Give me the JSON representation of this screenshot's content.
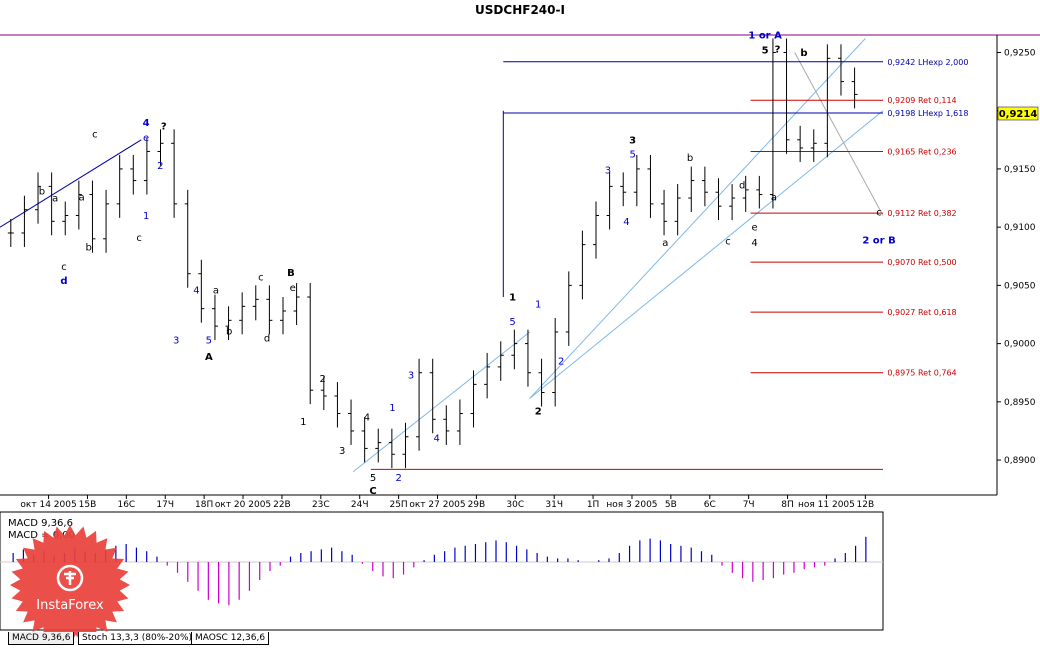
{
  "window": {
    "title": "USDCHF240-I"
  },
  "chart_data": {
    "type": "line",
    "title": "USDCHF240-I",
    "subtype": "candlestick-hloc-bars",
    "ylim": [
      0.887,
      0.9265
    ],
    "yticks": [
      "0,9250",
      "0,9200",
      "0,9150",
      "0,9100",
      "0,9050",
      "0,9000",
      "0,8950",
      "0,8900"
    ],
    "current_price": "0,9214",
    "x_labels": [
      "окт 14 2005",
      "15В",
      "16С",
      "17Ч",
      "18П",
      "окт 20 2005",
      "22В",
      "23С",
      "24Ч",
      "25П",
      "окт 27 2005",
      "29В",
      "30С",
      "31Ч",
      "1П",
      "ноя 3 2005",
      "5В",
      "6С",
      "7Ч",
      "8П",
      "ноя 11 2005",
      "12В"
    ],
    "price_path": [
      0.9095,
      0.9115,
      0.9135,
      0.9105,
      0.911,
      0.9128,
      0.909,
      0.912,
      0.915,
      0.914,
      0.9165,
      0.9172,
      0.912,
      0.906,
      0.903,
      0.9015,
      0.902,
      0.9032,
      0.9038,
      0.902,
      0.9028,
      0.904,
      0.896,
      0.8955,
      0.894,
      0.8925,
      0.891,
      0.8915,
      0.8905,
      0.892,
      0.8975,
      0.8935,
      0.8925,
      0.894,
      0.8965,
      0.898,
      0.899,
      0.9,
      0.8975,
      0.8958,
      0.901,
      0.905,
      0.9085,
      0.911,
      0.9135,
      0.913,
      0.915,
      0.912,
      0.9105,
      0.9125,
      0.914,
      0.913,
      0.9118,
      0.9125,
      0.9132,
      0.9128,
      0.925,
      0.9175,
      0.9168,
      0.9172,
      0.9245,
      0.9225,
      0.9214
    ],
    "levels": [
      {
        "price": 0.9242,
        "label": "0,9242 LHexp 2,000",
        "color": "#0000aa",
        "kind": "extension"
      },
      {
        "price": 0.9209,
        "label": "0,9209 Ret 0,114",
        "color": "#cc0000",
        "kind": "retracement"
      },
      {
        "price": 0.9198,
        "label": "0,9198 LHexp 1,618",
        "color": "#0000aa",
        "kind": "extension"
      },
      {
        "price": 0.9165,
        "label": "0,9165 Ret 0,236",
        "color": "#cc0000",
        "kind": "retracement"
      },
      {
        "price": 0.9112,
        "label": "0,9112 Ret 0,382",
        "color": "#cc0000",
        "kind": "retracement"
      },
      {
        "price": 0.907,
        "label": "0,9070 Ret 0,500",
        "color": "#cc0000",
        "kind": "retracement"
      },
      {
        "price": 0.9027,
        "label": "0,9027 Ret 0,618",
        "color": "#cc0000",
        "kind": "retracement"
      },
      {
        "price": 0.8975,
        "label": "0,8975 Ret 0,764",
        "color": "#cc0000",
        "kind": "retracement"
      }
    ],
    "wave_labels": [
      {
        "text": "4",
        "color": "#0000cc",
        "bold": true,
        "x": 0.1655,
        "p": 0.9187
      },
      {
        "text": "?",
        "color": "#000",
        "bold": true,
        "x": 0.1855,
        "p": 0.9184
      },
      {
        "text": "e",
        "color": "#0000cc",
        "bold": false,
        "x": 0.1655,
        "p": 0.9174
      },
      {
        "text": "c",
        "color": "#000",
        "bold": false,
        "x": 0.1075,
        "p": 0.9177
      },
      {
        "text": "2",
        "color": "#0000cc",
        "bold": false,
        "x": 0.1815,
        "p": 0.915
      },
      {
        "text": "b",
        "color": "#000",
        "bold": false,
        "x": 0.0475,
        "p": 0.9128
      },
      {
        "text": "a",
        "color": "#000",
        "bold": false,
        "x": 0.0925,
        "p": 0.9123
      },
      {
        "text": "a",
        "color": "#000",
        "bold": false,
        "x": 0.0625,
        "p": 0.9122
      },
      {
        "text": "1",
        "color": "#0000cc",
        "bold": false,
        "x": 0.1655,
        "p": 0.9107
      },
      {
        "text": "c",
        "color": "#000",
        "bold": false,
        "x": 0.1575,
        "p": 0.9088
      },
      {
        "text": "b",
        "color": "#000",
        "bold": false,
        "x": 0.1005,
        "p": 0.908
      },
      {
        "text": "c",
        "color": "#000",
        "bold": false,
        "x": 0.0725,
        "p": 0.9063
      },
      {
        "text": "d",
        "color": "#0000cc",
        "bold": true,
        "x": 0.0725,
        "p": 0.9051
      },
      {
        "text": "B",
        "color": "#000",
        "bold": true,
        "x": 0.3295,
        "p": 0.9058
      },
      {
        "text": "e",
        "color": "#000",
        "bold": false,
        "x": 0.3315,
        "p": 0.9045
      },
      {
        "text": "c",
        "color": "#000",
        "bold": false,
        "x": 0.2955,
        "p": 0.9054
      },
      {
        "text": "4",
        "color": "#0000cc",
        "bold": false,
        "x": 0.2225,
        "p": 0.9043
      },
      {
        "text": "a",
        "color": "#000",
        "bold": false,
        "x": 0.2445,
        "p": 0.9043
      },
      {
        "text": "b",
        "color": "#000",
        "bold": false,
        "x": 0.2595,
        "p": 0.9008
      },
      {
        "text": "d",
        "color": "#000",
        "bold": false,
        "x": 0.3025,
        "p": 0.9002
      },
      {
        "text": "5",
        "color": "#0000cc",
        "bold": false,
        "x": 0.2365,
        "p": 0.9
      },
      {
        "text": "3",
        "color": "#0000cc",
        "bold": false,
        "x": 0.1995,
        "p": 0.9
      },
      {
        "text": "A",
        "color": "#000",
        "bold": true,
        "x": 0.2365,
        "p": 0.8986
      },
      {
        "text": "2",
        "color": "#000",
        "bold": false,
        "x": 0.3655,
        "p": 0.8967
      },
      {
        "text": "1",
        "color": "#000",
        "bold": false,
        "x": 0.3435,
        "p": 0.893
      },
      {
        "text": "4",
        "color": "#000",
        "bold": false,
        "x": 0.4155,
        "p": 0.8934
      },
      {
        "text": "3",
        "color": "#000",
        "bold": false,
        "x": 0.3875,
        "p": 0.8905
      },
      {
        "text": "5",
        "color": "#000",
        "bold": false,
        "x": 0.4225,
        "p": 0.8882
      },
      {
        "text": "C",
        "color": "#000",
        "bold": true,
        "x": 0.4225,
        "p": 0.8871
      },
      {
        "text": "3",
        "color": "#0000cc",
        "bold": false,
        "x": 0.4655,
        "p": 0.897
      },
      {
        "text": "1",
        "color": "#0000cc",
        "bold": false,
        "x": 0.4445,
        "p": 0.8942
      },
      {
        "text": "4",
        "color": "#0000cc",
        "bold": false,
        "x": 0.4945,
        "p": 0.8916
      },
      {
        "text": "2",
        "color": "#0000cc",
        "bold": false,
        "x": 0.4515,
        "p": 0.8882
      },
      {
        "text": "1",
        "color": "#000",
        "bold": true,
        "x": 0.5805,
        "p": 0.9037
      },
      {
        "text": "5",
        "color": "#0000cc",
        "bold": false,
        "x": 0.5805,
        "p": 0.9016
      },
      {
        "text": "1",
        "color": "#0000cc",
        "bold": false,
        "x": 0.6095,
        "p": 0.9031
      },
      {
        "text": "2",
        "color": "#0000cc",
        "bold": false,
        "x": 0.6355,
        "p": 0.8982
      },
      {
        "text": "2",
        "color": "#000",
        "bold": true,
        "x": 0.6095,
        "p": 0.8939
      },
      {
        "text": "1 or A",
        "color": "#0000cc",
        "bold": true,
        "x": 0.8665,
        "p": 0.9262
      },
      {
        "text": "5",
        "color": "#000",
        "bold": true,
        "x": 0.8665,
        "p": 0.9249
      },
      {
        "text": "?",
        "color": "#000",
        "bold": true,
        "x": 0.8805,
        "p": 0.925
      },
      {
        "text": "b",
        "color": "#000",
        "bold": true,
        "x": 0.9105,
        "p": 0.9247
      },
      {
        "text": "3",
        "color": "#000",
        "bold": true,
        "x": 0.7165,
        "p": 0.9172
      },
      {
        "text": "5",
        "color": "#0000cc",
        "bold": false,
        "x": 0.7165,
        "p": 0.916
      },
      {
        "text": "3",
        "color": "#0000cc",
        "bold": false,
        "x": 0.6885,
        "p": 0.9146
      },
      {
        "text": "b",
        "color": "#000",
        "bold": false,
        "x": 0.7815,
        "p": 0.9157
      },
      {
        "text": "4",
        "color": "#0000cc",
        "bold": false,
        "x": 0.7095,
        "p": 0.9102
      },
      {
        "text": "a",
        "color": "#000",
        "bold": false,
        "x": 0.7535,
        "p": 0.9084
      },
      {
        "text": "d",
        "color": "#000",
        "bold": false,
        "x": 0.8405,
        "p": 0.9133
      },
      {
        "text": "a",
        "color": "#000",
        "bold": false,
        "x": 0.8765,
        "p": 0.9123
      },
      {
        "text": "e",
        "color": "#000",
        "bold": false,
        "x": 0.8545,
        "p": 0.9097
      },
      {
        "text": "c",
        "color": "#000",
        "bold": false,
        "x": 0.8245,
        "p": 0.9085
      },
      {
        "text": "4",
        "color": "#000",
        "bold": false,
        "x": 0.8545,
        "p": 0.9084
      },
      {
        "text": "c",
        "color": "#000",
        "bold": false,
        "x": 0.9955,
        "p": 0.911
      },
      {
        "text": "2 or B",
        "color": "#0000cc",
        "bold": true,
        "x": 0.9955,
        "p": 0.9086
      }
    ],
    "indicator": {
      "name": "MACD",
      "label_line1": "MACD 9,36,6",
      "label_line2": "MACD = 0,00",
      "histogram": [
        0.5,
        0.7,
        0.4,
        0.6,
        0.3,
        0.5,
        0.8,
        0.6,
        0.5,
        0.7,
        0.9,
        1.0,
        0.8,
        0.6,
        0.3,
        -0.2,
        -0.6,
        -1.1,
        -1.6,
        -2.1,
        -2.3,
        -2.4,
        -2.1,
        -1.6,
        -1.0,
        -0.5,
        -0.2,
        0.3,
        0.5,
        0.6,
        0.7,
        0.8,
        0.6,
        0.4,
        -0.1,
        -0.5,
        -0.8,
        -0.9,
        -0.7,
        -0.3,
        0.1,
        0.4,
        0.6,
        0.8,
        0.9,
        1.0,
        1.1,
        1.2,
        1.1,
        0.9,
        0.7,
        0.5,
        0.3,
        0.2,
        0.2,
        0.1,
        0.0,
        0.1,
        0.2,
        0.5,
        0.9,
        1.2,
        1.3,
        1.2,
        1.0,
        0.9,
        0.8,
        0.6,
        0.4,
        -0.2,
        -0.6,
        -0.9,
        -1.1,
        -1.0,
        -0.9,
        -0.7,
        -0.6,
        -0.4,
        -0.3,
        -0.2,
        0.2,
        0.5,
        0.9,
        1.4
      ]
    },
    "grid": false
  },
  "tabs": [
    {
      "label": "MACD 9,36,6",
      "active": true
    },
    {
      "label": "Stoch 13,3,3 (80%-20%)",
      "active": false
    },
    {
      "label": "MAOSC 12,36,6",
      "active": false
    }
  ],
  "watermark": {
    "brand": "InstaForex"
  },
  "colors": {
    "bar": "#000000",
    "support": "#0000aa",
    "resistance": "#cc0000",
    "channel": "#7fb7e8",
    "macd_pos": "#0000cc",
    "macd_neg": "#cc00cc",
    "price_box": "#ffff00",
    "frame": "#800080"
  }
}
